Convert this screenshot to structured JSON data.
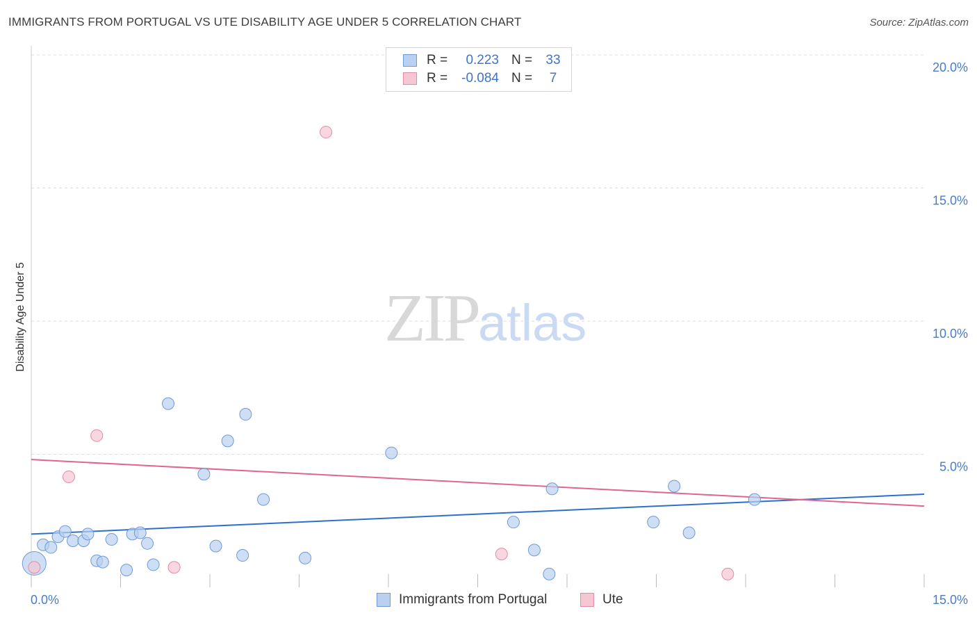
{
  "title": "IMMIGRANTS FROM PORTUGAL VS UTE DISABILITY AGE UNDER 5 CORRELATION CHART",
  "source": "Source: ZipAtlas.com",
  "watermark": {
    "zip": "ZIP",
    "atlas": "atlas"
  },
  "legend": {
    "rows": [
      {
        "r_label": "R =",
        "r_value": "0.223",
        "n_label": "N =",
        "n_value": "33"
      },
      {
        "r_label": "R =",
        "r_value": "-0.084",
        "n_label": "N =",
        "n_value": "7"
      }
    ]
  },
  "bottom_legend": [
    "Immigrants from Portugal",
    "Ute"
  ],
  "colors": {
    "series1_fill": "#b9d0f0",
    "series1_stroke": "#6f9ad8",
    "series1_line": "#2f6fcc",
    "series2_fill": "#f7c6d3",
    "series2_stroke": "#e48aa5",
    "series2_line": "#e0658f",
    "tick_text": "#4a7cc7",
    "grid": "#dddddd"
  },
  "chart_data": {
    "type": "scatter",
    "title": "IMMIGRANTS FROM PORTUGAL VS UTE DISABILITY AGE UNDER 5 CORRELATION CHART",
    "xlabel": "",
    "ylabel": "Disability Age Under 5",
    "xlim": [
      0,
      15
    ],
    "ylim": [
      0,
      20
    ],
    "x_tick_labels": [
      "0.0%",
      "15.0%"
    ],
    "y_ticks": [
      5,
      10,
      15,
      20
    ],
    "y_tick_labels": [
      "5.0%",
      "10.0%",
      "15.0%",
      "20.0%"
    ],
    "grid": true,
    "legend_position": "top-center",
    "series": [
      {
        "name": "Immigrants from Portugal",
        "points": [
          {
            "x": 0.05,
            "y": 0.9,
            "big": true
          },
          {
            "x": 0.2,
            "y": 1.6
          },
          {
            "x": 0.33,
            "y": 1.5
          },
          {
            "x": 0.45,
            "y": 1.9
          },
          {
            "x": 0.57,
            "y": 2.1
          },
          {
            "x": 0.7,
            "y": 1.75
          },
          {
            "x": 0.88,
            "y": 1.75
          },
          {
            "x": 0.95,
            "y": 2.0
          },
          {
            "x": 1.1,
            "y": 1.0
          },
          {
            "x": 1.2,
            "y": 0.95
          },
          {
            "x": 1.35,
            "y": 1.8
          },
          {
            "x": 1.6,
            "y": 0.65
          },
          {
            "x": 1.7,
            "y": 2.0
          },
          {
            "x": 1.83,
            "y": 2.05
          },
          {
            "x": 1.95,
            "y": 1.65
          },
          {
            "x": 2.05,
            "y": 0.85
          },
          {
            "x": 2.3,
            "y": 6.9
          },
          {
            "x": 2.9,
            "y": 4.25
          },
          {
            "x": 3.1,
            "y": 1.55
          },
          {
            "x": 3.3,
            "y": 5.5
          },
          {
            "x": 3.55,
            "y": 1.2
          },
          {
            "x": 3.6,
            "y": 6.5
          },
          {
            "x": 3.9,
            "y": 3.3
          },
          {
            "x": 4.6,
            "y": 1.1
          },
          {
            "x": 6.05,
            "y": 5.05
          },
          {
            "x": 8.1,
            "y": 2.45
          },
          {
            "x": 8.45,
            "y": 1.4
          },
          {
            "x": 8.7,
            "y": 0.5
          },
          {
            "x": 8.75,
            "y": 3.7
          },
          {
            "x": 10.45,
            "y": 2.45
          },
          {
            "x": 10.8,
            "y": 3.8
          },
          {
            "x": 11.05,
            "y": 2.05
          },
          {
            "x": 12.15,
            "y": 3.3
          }
        ],
        "trend": {
          "x1": 0,
          "y1": 2.0,
          "x2": 15,
          "y2": 3.5
        }
      },
      {
        "name": "Ute",
        "points": [
          {
            "x": 0.05,
            "y": 0.75
          },
          {
            "x": 0.63,
            "y": 4.15
          },
          {
            "x": 1.1,
            "y": 5.7
          },
          {
            "x": 2.4,
            "y": 0.75
          },
          {
            "x": 4.95,
            "y": 17.1
          },
          {
            "x": 7.9,
            "y": 1.25
          },
          {
            "x": 11.7,
            "y": 0.5
          }
        ],
        "trend": {
          "x1": 0,
          "y1": 4.8,
          "x2": 15,
          "y2": 3.05
        }
      }
    ]
  }
}
